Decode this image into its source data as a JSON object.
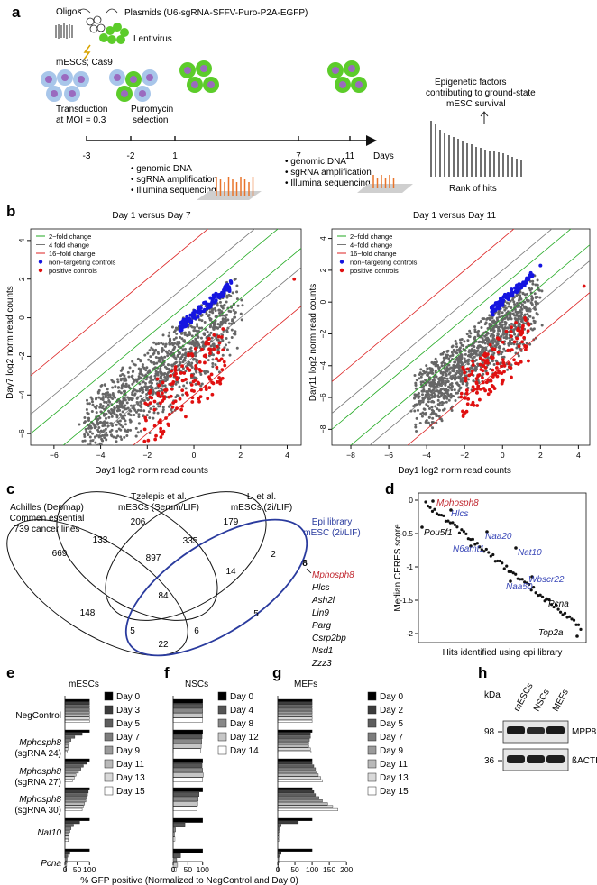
{
  "panel_a": {
    "letter": "a",
    "oligos": "Oligos",
    "plasmid": "Plasmids (U6-sgRNA-SFFV-Puro-P2A-EGFP)",
    "lentivirus": "Lentivirus",
    "cells": "mESCs; Cas9",
    "transduction": [
      "Transduction",
      "at MOI = 0.3"
    ],
    "puromycin": [
      "Puromycin",
      "selection"
    ],
    "epigenetic": [
      "Epigenetic factors",
      "contributing to ground-state",
      "mESC survival"
    ],
    "rank": "Rank of hits",
    "ticks": [
      "-3",
      "-2",
      "1",
      "7",
      "11"
    ],
    "days": "Days",
    "bullets": [
      "• genomic DNA",
      "• sgRNA amplification",
      "• Illumina sequencing"
    ]
  },
  "panel_b": {
    "letter": "b",
    "plots": [
      {
        "title": "Day 1 versus Day 7",
        "xlabel": "Day1 log2 norm read counts",
        "ylabel": "Day7 log2 norm read counts"
      },
      {
        "title": "Day 1 versus Day 11",
        "xlabel": "Day1 log2 norm read counts",
        "ylabel": "Day11 log2 norm read counts"
      }
    ],
    "legend_left": [
      "2−fold change",
      "4  fold change",
      "16−fold change",
      "non−targeting controls",
      "positive controls"
    ],
    "legend_right": [
      "2−fold change",
      "4−fold change",
      "16−fold change",
      "non−targeting controls",
      "positive controls"
    ],
    "colors": {
      "nontarget": "#1515e0",
      "positive": "#e01010",
      "gene": "#666666",
      "fold2": "#22aa22",
      "fold4": "#777777",
      "fold16": "#dd2222"
    }
  },
  "panel_c": {
    "letter": "c",
    "set1": [
      "Achilles (Depmap)",
      "Commen essential",
      "739 cancer lines"
    ],
    "set2": [
      "Tzelepis et al.",
      "mESCs (Serum/LIF)"
    ],
    "set3": [
      "Li et al.",
      "mESCs (2i/LIF)"
    ],
    "set4": [
      "Epi library",
      "mESC (2i/LIF)"
    ],
    "counts": [
      "669",
      "206",
      "179",
      "133",
      "335",
      "2",
      "897",
      "14",
      "8",
      "84",
      "148",
      "5",
      "5",
      "6",
      "22"
    ],
    "genes": [
      "Mphosph8",
      "Hlcs",
      "Ash2l",
      "Lin9",
      "Parg",
      "Csrp2bp",
      "Nsd1",
      "Zzz3"
    ]
  },
  "panel_d": {
    "letter": "d",
    "ylabel": "Median CERES score",
    "xlabel": "Hits identified using epi library",
    "yticks": [
      "0",
      "-0.5",
      "-1",
      "-1.5",
      "-2"
    ],
    "labels": [
      "Mphosph8",
      "Hlcs",
      "Pou5f1",
      "Naa20",
      "N6amt1",
      "Nat10",
      "Wbscr22",
      "Naa50",
      "Pcna",
      "Top2a"
    ]
  },
  "panel_efg": {
    "letters": [
      "e",
      "f",
      "g"
    ],
    "titles": [
      "mESCs",
      "NSCs",
      "MEFs"
    ],
    "groups": [
      "NegControl",
      "Mphosph8",
      "(sgRNA 24)",
      "Mphosph8",
      "(sgRNA 27)",
      "Mphosph8",
      "(sgRNA 30)",
      "Nat10",
      "Pcna"
    ],
    "legend_e": [
      "Day 0",
      "Day 3",
      "Day 5",
      "Day 7",
      "Day 9",
      "Day 11",
      "Day 13",
      "Day 15"
    ],
    "legend_f": [
      "Day 0",
      "Day 4",
      "Day 8",
      "Day 12",
      "Day 14"
    ],
    "legend_g": [
      "Day 0",
      "Day 2",
      "Day 5",
      "Day 7",
      "Day 9",
      "Day 11",
      "Day 13",
      "Day 15"
    ],
    "xticks_e": [
      "0",
      "50",
      "100"
    ],
    "xticks_f": [
      "0",
      "50",
      "100"
    ],
    "xticks_g": [
      "0",
      "50",
      "100",
      "150",
      "200"
    ],
    "xlabel": "% GFP positive  (Normalized to NegControl and Day 0)"
  },
  "panel_h": {
    "letter": "h",
    "kda": "kDa",
    "lanes": [
      "mESCs",
      "NSCs",
      "MEFs"
    ],
    "markers": [
      "98",
      "36"
    ],
    "proteins": [
      "MPP8",
      "ßACTIN"
    ]
  },
  "chart_data": [
    {
      "type": "bar",
      "title": "mESCs",
      "xlabel": "% GFP positive (Normalized to NegControl and Day 0)",
      "categories": [
        "NegControl",
        "Mphosph8 (sgRNA 24)",
        "Mphosph8 (sgRNA 27)",
        "Mphosph8 (sgRNA 30)",
        "Nat10",
        "Pcna"
      ],
      "xlim": [
        0,
        110
      ],
      "series": [
        {
          "name": "Day 0",
          "values": [
            100,
            100,
            100,
            100,
            100,
            100
          ]
        },
        {
          "name": "Day 3",
          "values": [
            100,
            70,
            88,
            95,
            60,
            20
          ]
        },
        {
          "name": "Day 5",
          "values": [
            100,
            40,
            75,
            92,
            35,
            12
          ]
        },
        {
          "name": "Day 7",
          "values": [
            100,
            25,
            65,
            90,
            25,
            9
          ]
        },
        {
          "name": "Day 9",
          "values": [
            100,
            18,
            55,
            85,
            20,
            8
          ]
        },
        {
          "name": "Day 11",
          "values": [
            100,
            14,
            45,
            80,
            17,
            7
          ]
        },
        {
          "name": "Day 13",
          "values": [
            100,
            12,
            38,
            75,
            15,
            6
          ]
        },
        {
          "name": "Day 15",
          "values": [
            100,
            10,
            30,
            70,
            14,
            5
          ]
        }
      ]
    },
    {
      "type": "bar",
      "title": "NSCs",
      "xlabel": "% GFP positive (Normalized to NegControl and Day 0)",
      "categories": [
        "NegControl",
        "Mphosph8 (sgRNA 24)",
        "Mphosph8 (sgRNA 27)",
        "Mphosph8 (sgRNA 30)",
        "Nat10",
        "Pcna"
      ],
      "xlim": [
        0,
        110
      ],
      "series": [
        {
          "name": "Day 0",
          "values": [
            100,
            100,
            100,
            100,
            100,
            100
          ]
        },
        {
          "name": "Day 4",
          "values": [
            100,
            98,
            98,
            88,
            40,
            25
          ]
        },
        {
          "name": "Day 8",
          "values": [
            100,
            97,
            100,
            85,
            8,
            12
          ]
        },
        {
          "name": "Day 12",
          "values": [
            100,
            95,
            102,
            83,
            5,
            15
          ]
        },
        {
          "name": "Day 14",
          "values": [
            100,
            93,
            100,
            80,
            6,
            10
          ]
        }
      ]
    },
    {
      "type": "bar",
      "title": "MEFs",
      "xlabel": "% GFP positive (Normalized to NegControl and Day 0)",
      "categories": [
        "NegControl",
        "Mphosph8 (sgRNA 24)",
        "Mphosph8 (sgRNA 27)",
        "Mphosph8 (sgRNA 30)",
        "Nat10",
        "Pcna"
      ],
      "xlim": [
        0,
        200
      ],
      "series": [
        {
          "name": "Day 0",
          "values": [
            100,
            100,
            100,
            100,
            100,
            100
          ]
        },
        {
          "name": "Day 2",
          "values": [
            100,
            95,
            100,
            105,
            60,
            10
          ]
        },
        {
          "name": "Day 5",
          "values": [
            100,
            95,
            105,
            110,
            10,
            5
          ]
        },
        {
          "name": "Day 7",
          "values": [
            100,
            92,
            110,
            120,
            5,
            3
          ]
        },
        {
          "name": "Day 9",
          "values": [
            100,
            90,
            115,
            130,
            4,
            3
          ]
        },
        {
          "name": "Day 11",
          "values": [
            100,
            90,
            118,
            145,
            3,
            2
          ]
        },
        {
          "name": "Day 13",
          "values": [
            100,
            95,
            125,
            160,
            3,
            2
          ]
        },
        {
          "name": "Day 15",
          "values": [
            100,
            97,
            130,
            175,
            3,
            2
          ]
        }
      ]
    },
    {
      "type": "scatter",
      "title": "Day 1 versus Day 7",
      "xlabel": "Day1 log2 norm read counts",
      "ylabel": "Day7 log2 norm read counts",
      "xlim": [
        -7,
        4.5
      ],
      "ylim": [
        -6.5,
        4.5
      ],
      "series": [
        {
          "name": "non-targeting controls",
          "x": [
            -0.5,
            0,
            0.3,
            0.6,
            0.9,
            1.2,
            1.5,
            -0.2,
            0.8,
            1.1
          ],
          "y": [
            -0.4,
            0.1,
            0.5,
            0.7,
            1.1,
            1.3,
            1.6,
            -0.1,
            0.9,
            1.2
          ]
        },
        {
          "name": "positive controls",
          "x": [
            -2,
            -1.5,
            -1,
            -0.5,
            0,
            0.5,
            1,
            -1.2,
            0.2,
            4.3
          ],
          "y": [
            -4.5,
            -3.5,
            -3,
            -2.5,
            -3.8,
            -2,
            -1.5,
            -5.2,
            -4.2,
            2
          ]
        }
      ]
    },
    {
      "type": "scatter",
      "title": "Day 1 versus Day 11",
      "xlabel": "Day1 log2 norm read counts",
      "ylabel": "Day11 log2 norm read counts",
      "xlim": [
        -9,
        4.5
      ],
      "ylim": [
        -9,
        4.5
      ],
      "series": [
        {
          "name": "non-targeting controls",
          "x": [
            -0.5,
            0,
            0.5,
            1,
            1.5,
            2,
            -0.2,
            0.8
          ],
          "y": [
            -0.8,
            -0.2,
            0.6,
            1.1,
            1.7,
            2.3,
            -0.4,
            0.9
          ]
        },
        {
          "name": "positive controls",
          "x": [
            -2,
            -1.5,
            -1,
            -0.5,
            0,
            0.5,
            1,
            4.3
          ],
          "y": [
            -6,
            -5.5,
            -4,
            -3.5,
            -5,
            -3,
            -2,
            1
          ]
        }
      ]
    }
  ]
}
